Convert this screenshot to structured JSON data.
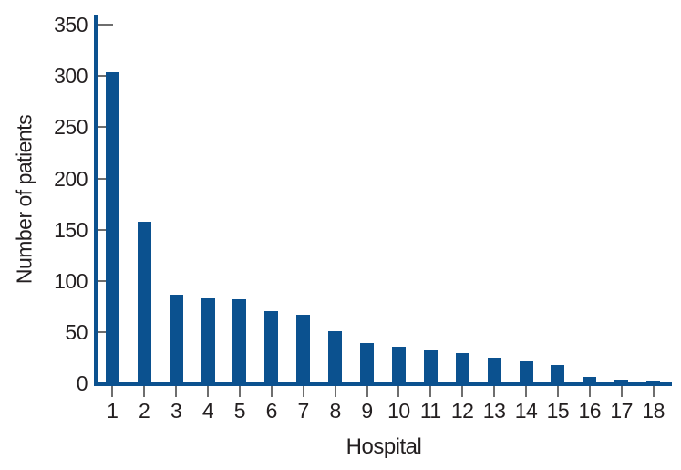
{
  "chart_data": {
    "type": "bar",
    "title": "",
    "xlabel": "Hospital",
    "ylabel": "Number of patients",
    "categories": [
      "1",
      "2",
      "3",
      "4",
      "5",
      "6",
      "7",
      "8",
      "9",
      "10",
      "11",
      "12",
      "13",
      "14",
      "15",
      "16",
      "17",
      "18"
    ],
    "values": [
      304,
      158,
      86,
      84,
      82,
      70,
      67,
      51,
      39,
      36,
      33,
      29,
      25,
      21,
      18,
      6,
      4,
      3
    ],
    "ylim": [
      0,
      360
    ],
    "yticks": [
      0,
      50,
      100,
      150,
      200,
      250,
      300,
      350
    ],
    "grid": false,
    "legend": false,
    "bar_color": "#0B518F",
    "axis_color": "#0B518F",
    "tick_color": "#6E6E6E",
    "text_color": "#231F20"
  }
}
